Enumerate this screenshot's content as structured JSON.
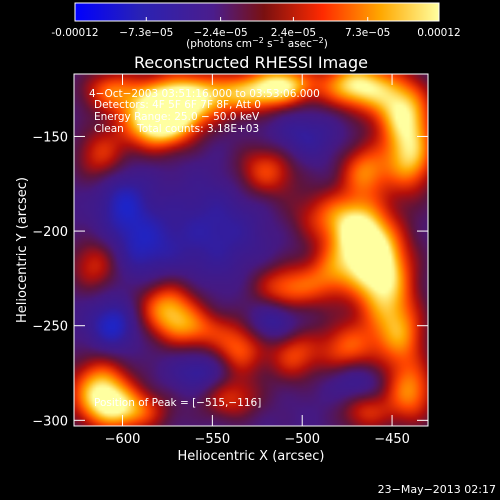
{
  "chart_data": {
    "type": "heatmap",
    "title": "Reconstructed RHESSI Image",
    "xlabel": "Heliocentric X (arcsec)",
    "ylabel": "Heliocentric Y (arcsec)",
    "xlim": [
      -627,
      -430
    ],
    "ylim": [
      -303,
      -117
    ],
    "xticks": [
      -600,
      -550,
      -500,
      -450
    ],
    "xtick_labels": [
      "−600",
      "−550",
      "−500",
      "−450"
    ],
    "yticks": [
      -150,
      -200,
      -250,
      -300
    ],
    "ytick_labels": [
      "−150",
      "−200",
      "−250",
      "−300"
    ],
    "colorbar": {
      "range": [
        -0.00012,
        0.00012
      ],
      "tick_values": [
        -0.00012,
        -7.3e-05,
        -2.4e-05,
        2.4e-05,
        7.3e-05,
        0.00012
      ],
      "tick_labels": [
        "-0.00012",
        "−7.3e−05",
        "−2.4e−05",
        "2.4e−05",
        "7.3e−05",
        "0.00012"
      ],
      "unit_prefix": "(photons cm",
      "unit_exp1": "−2",
      "unit_mid": " s",
      "unit_exp2": "−1",
      "unit_mid2": " asec",
      "unit_exp3": "−2",
      "unit_suffix": ")",
      "colors": [
        "#0000ff",
        "#3a1a9a",
        "#4b1d8c",
        "#8a1010",
        "#ff3300",
        "#ffaa00",
        "#ffff99"
      ]
    },
    "annotations": {
      "time_range": "4−Oct−2003 03:51:16.000 to 03:53:06.000",
      "detectors": "Detectors: 4F 5F 6F 7F 8F, Att 0",
      "energy_range": "Energy Range: 25.0 − 50.0 keV",
      "method": "Clean    Total counts: 3.18E+03",
      "peak_position": "Position of Peak = [−515,−116]"
    },
    "blobs": [
      {
        "x": -580,
        "y": -143,
        "a": 1.0,
        "sx": 14,
        "sy": 10
      },
      {
        "x": -568,
        "y": -130,
        "a": 0.9,
        "sx": 16,
        "sy": 10
      },
      {
        "x": -606,
        "y": -126,
        "a": 0.55,
        "sx": 12,
        "sy": 8
      },
      {
        "x": -530,
        "y": -127,
        "a": 0.7,
        "sx": 18,
        "sy": 8
      },
      {
        "x": -510,
        "y": -122,
        "a": 0.65,
        "sx": 12,
        "sy": 7
      },
      {
        "x": -470,
        "y": -123,
        "a": 0.9,
        "sx": 14,
        "sy": 9
      },
      {
        "x": -445,
        "y": -135,
        "a": 0.75,
        "sx": 12,
        "sy": 12
      },
      {
        "x": -440,
        "y": -160,
        "a": 0.8,
        "sx": 10,
        "sy": 14
      },
      {
        "x": -520,
        "y": -168,
        "a": 0.55,
        "sx": 12,
        "sy": 10
      },
      {
        "x": -465,
        "y": -168,
        "a": 0.6,
        "sx": 10,
        "sy": 10
      },
      {
        "x": -612,
        "y": -160,
        "a": 0.45,
        "sx": 10,
        "sy": 10
      },
      {
        "x": -485,
        "y": -192,
        "a": 0.45,
        "sx": 16,
        "sy": 10
      },
      {
        "x": -468,
        "y": -205,
        "a": 0.85,
        "sx": 12,
        "sy": 14
      },
      {
        "x": -455,
        "y": -225,
        "a": 0.9,
        "sx": 12,
        "sy": 18
      },
      {
        "x": -445,
        "y": -255,
        "a": 0.55,
        "sx": 10,
        "sy": 12
      },
      {
        "x": -508,
        "y": -230,
        "a": 0.6,
        "sx": 14,
        "sy": 9
      },
      {
        "x": -485,
        "y": -222,
        "a": 0.4,
        "sx": 10,
        "sy": 10
      },
      {
        "x": -575,
        "y": -240,
        "a": 0.7,
        "sx": 12,
        "sy": 10
      },
      {
        "x": -560,
        "y": -252,
        "a": 0.5,
        "sx": 14,
        "sy": 8
      },
      {
        "x": -615,
        "y": -218,
        "a": 0.45,
        "sx": 10,
        "sy": 10
      },
      {
        "x": -612,
        "y": -285,
        "a": 0.9,
        "sx": 12,
        "sy": 12
      },
      {
        "x": -595,
        "y": -295,
        "a": 0.6,
        "sx": 14,
        "sy": 8
      },
      {
        "x": -535,
        "y": -263,
        "a": 0.55,
        "sx": 10,
        "sy": 10
      },
      {
        "x": -505,
        "y": -265,
        "a": 0.5,
        "sx": 10,
        "sy": 10
      },
      {
        "x": -475,
        "y": -262,
        "a": 0.55,
        "sx": 12,
        "sy": 10
      },
      {
        "x": -440,
        "y": -285,
        "a": 0.65,
        "sx": 10,
        "sy": 12
      },
      {
        "x": -540,
        "y": -288,
        "a": 0.45,
        "sx": 12,
        "sy": 8
      },
      {
        "x": -465,
        "y": -295,
        "a": 0.45,
        "sx": 10,
        "sy": 8
      },
      {
        "x": -548,
        "y": -200,
        "a": -0.25,
        "sx": 20,
        "sy": 20
      },
      {
        "x": -590,
        "y": -208,
        "a": -0.3,
        "sx": 14,
        "sy": 14
      },
      {
        "x": -605,
        "y": -250,
        "a": -0.4,
        "sx": 10,
        "sy": 10
      },
      {
        "x": -515,
        "y": -248,
        "a": -0.35,
        "sx": 10,
        "sy": 8
      },
      {
        "x": -555,
        "y": -275,
        "a": -0.3,
        "sx": 12,
        "sy": 8
      },
      {
        "x": -470,
        "y": -280,
        "a": -0.3,
        "sx": 10,
        "sy": 8
      },
      {
        "x": -500,
        "y": -150,
        "a": -0.25,
        "sx": 14,
        "sy": 10
      },
      {
        "x": -600,
        "y": -183,
        "a": -0.3,
        "sx": 10,
        "sy": 12
      }
    ]
  },
  "footer": {
    "timestamp": "23−May−2013 02:17"
  }
}
